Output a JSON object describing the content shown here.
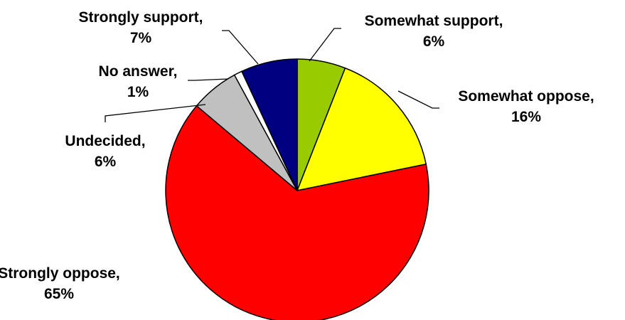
{
  "chart_data": {
    "type": "pie",
    "title": "",
    "start": "top",
    "direction": "clockwise",
    "slices": [
      {
        "label": "Somewhat support",
        "value": 6,
        "display": "6%",
        "color": "#99CC00",
        "name": "somewhat-support"
      },
      {
        "label": "Somewhat oppose",
        "value": 16,
        "display": "16%",
        "color": "#FFFF00",
        "name": "somewhat-oppose"
      },
      {
        "label": "Strongly oppose",
        "value": 65,
        "display": "65%",
        "color": "#FF0000",
        "name": "strongly-oppose"
      },
      {
        "label": "Undecided",
        "value": 6,
        "display": "6%",
        "color": "#C0C0C0",
        "name": "undecided"
      },
      {
        "label": "No answer",
        "value": 1,
        "display": "1%",
        "color": "#FFFFFF",
        "name": "no-answer"
      },
      {
        "label": "Strongly support",
        "value": 7,
        "display": "7%",
        "color": "#000080",
        "name": "strongly-support"
      }
    ]
  }
}
